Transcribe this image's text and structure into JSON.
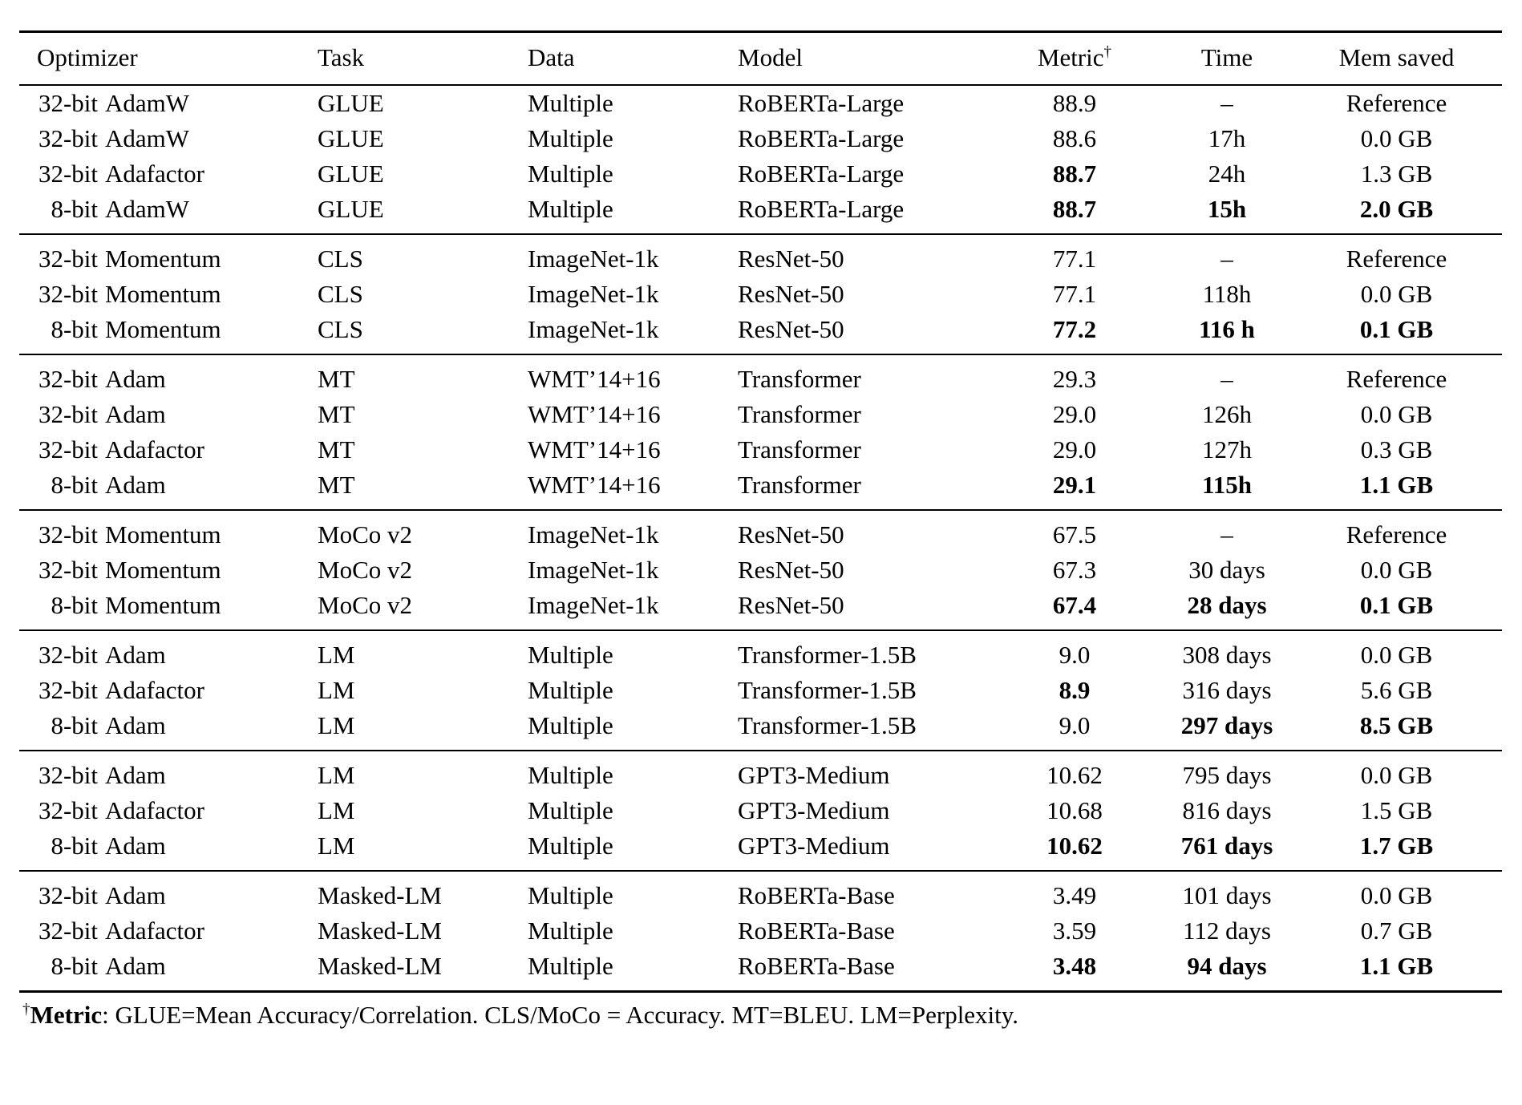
{
  "table": {
    "columns": [
      {
        "key": "optimizer",
        "label": "Optimizer"
      },
      {
        "key": "task",
        "label": "Task"
      },
      {
        "key": "data",
        "label": "Data"
      },
      {
        "key": "model",
        "label": "Model"
      },
      {
        "key": "metric",
        "label": "Metric",
        "sup": "†"
      },
      {
        "key": "time",
        "label": "Time"
      },
      {
        "key": "mem",
        "label": "Mem saved"
      }
    ],
    "groups": [
      {
        "rows": [
          {
            "optimizer": "32-bit AdamW",
            "task": "GLUE",
            "data": "Multiple",
            "model": "RoBERTa-Large",
            "metric": "88.9",
            "time": "–",
            "mem": "Reference",
            "bold": []
          },
          {
            "optimizer": "32-bit AdamW",
            "task": "GLUE",
            "data": "Multiple",
            "model": "RoBERTa-Large",
            "metric": "88.6",
            "time": "17h",
            "mem": "0.0 GB",
            "bold": []
          },
          {
            "optimizer": "32-bit Adafactor",
            "task": "GLUE",
            "data": "Multiple",
            "model": "RoBERTa-Large",
            "metric": "88.7",
            "time": "24h",
            "mem": "1.3 GB",
            "bold": [
              "metric"
            ]
          },
          {
            "optimizer": "8-bit AdamW",
            "task": "GLUE",
            "data": "Multiple",
            "model": "RoBERTa-Large",
            "metric": "88.7",
            "time": "15h",
            "mem": "2.0 GB",
            "bold": [
              "metric",
              "time",
              "mem"
            ]
          }
        ]
      },
      {
        "rows": [
          {
            "optimizer": "32-bit Momentum",
            "task": "CLS",
            "data": "ImageNet-1k",
            "model": "ResNet-50",
            "metric": "77.1",
            "time": "–",
            "mem": "Reference",
            "bold": []
          },
          {
            "optimizer": "32-bit Momentum",
            "task": "CLS",
            "data": "ImageNet-1k",
            "model": "ResNet-50",
            "metric": "77.1",
            "time": "118h",
            "mem": "0.0 GB",
            "bold": []
          },
          {
            "optimizer": "8-bit Momentum",
            "task": "CLS",
            "data": "ImageNet-1k",
            "model": "ResNet-50",
            "metric": "77.2",
            "time": "116 h",
            "mem": "0.1 GB",
            "bold": [
              "metric",
              "time",
              "mem"
            ]
          }
        ]
      },
      {
        "rows": [
          {
            "optimizer": "32-bit Adam",
            "task": "MT",
            "data": "WMT’14+16",
            "model": "Transformer",
            "metric": "29.3",
            "time": "–",
            "mem": "Reference",
            "bold": []
          },
          {
            "optimizer": "32-bit Adam",
            "task": "MT",
            "data": "WMT’14+16",
            "model": "Transformer",
            "metric": "29.0",
            "time": "126h",
            "mem": "0.0 GB",
            "bold": []
          },
          {
            "optimizer": "32-bit Adafactor",
            "task": "MT",
            "data": "WMT’14+16",
            "model": "Transformer",
            "metric": "29.0",
            "time": "127h",
            "mem": "0.3 GB",
            "bold": []
          },
          {
            "optimizer": "8-bit Adam",
            "task": "MT",
            "data": "WMT’14+16",
            "model": "Transformer",
            "metric": "29.1",
            "time": "115h",
            "mem": "1.1 GB",
            "bold": [
              "metric",
              "time",
              "mem"
            ]
          }
        ]
      },
      {
        "rows": [
          {
            "optimizer": "32-bit Momentum",
            "task": "MoCo v2",
            "data": "ImageNet-1k",
            "model": "ResNet-50",
            "metric": "67.5",
            "time": "–",
            "mem": "Reference",
            "bold": []
          },
          {
            "optimizer": "32-bit Momentum",
            "task": "MoCo v2",
            "data": "ImageNet-1k",
            "model": "ResNet-50",
            "metric": "67.3",
            "time": "30 days",
            "mem": "0.0 GB",
            "bold": []
          },
          {
            "optimizer": "8-bit Momentum",
            "task": "MoCo v2",
            "data": "ImageNet-1k",
            "model": "ResNet-50",
            "metric": "67.4",
            "time": "28 days",
            "mem": "0.1 GB",
            "bold": [
              "metric",
              "time",
              "mem"
            ]
          }
        ]
      },
      {
        "rows": [
          {
            "optimizer": "32-bit Adam",
            "task": "LM",
            "data": "Multiple",
            "model": "Transformer-1.5B",
            "metric": "9.0",
            "time": "308 days",
            "mem": "0.0 GB",
            "bold": []
          },
          {
            "optimizer": "32-bit Adafactor",
            "task": "LM",
            "data": "Multiple",
            "model": "Transformer-1.5B",
            "metric": "8.9",
            "time": "316 days",
            "mem": "5.6 GB",
            "bold": [
              "metric"
            ]
          },
          {
            "optimizer": "8-bit Adam",
            "task": "LM",
            "data": "Multiple",
            "model": "Transformer-1.5B",
            "metric": "9.0",
            "time": "297 days",
            "mem": "8.5 GB",
            "bold": [
              "time",
              "mem"
            ]
          }
        ]
      },
      {
        "rows": [
          {
            "optimizer": "32-bit Adam",
            "task": "LM",
            "data": "Multiple",
            "model": "GPT3-Medium",
            "metric": "10.62",
            "time": "795 days",
            "mem": "0.0 GB",
            "bold": []
          },
          {
            "optimizer": "32-bit Adafactor",
            "task": "LM",
            "data": "Multiple",
            "model": "GPT3-Medium",
            "metric": "10.68",
            "time": "816 days",
            "mem": "1.5 GB",
            "bold": []
          },
          {
            "optimizer": "8-bit Adam",
            "task": "LM",
            "data": "Multiple",
            "model": "GPT3-Medium",
            "metric": "10.62",
            "time": "761 days",
            "mem": "1.7 GB",
            "bold": [
              "metric",
              "time",
              "mem"
            ]
          }
        ]
      },
      {
        "rows": [
          {
            "optimizer": "32-bit Adam",
            "task": "Masked-LM",
            "data": "Multiple",
            "model": "RoBERTa-Base",
            "metric": "3.49",
            "time": "101 days",
            "mem": "0.0 GB",
            "bold": []
          },
          {
            "optimizer": "32-bit Adafactor",
            "task": "Masked-LM",
            "data": "Multiple",
            "model": "RoBERTa-Base",
            "metric": "3.59",
            "time": "112 days",
            "mem": "0.7 GB",
            "bold": []
          },
          {
            "optimizer": "8-bit Adam",
            "task": "Masked-LM",
            "data": "Multiple",
            "model": "RoBERTa-Base",
            "metric": "3.48",
            "time": "94 days",
            "mem": "1.1 GB",
            "bold": [
              "metric",
              "time",
              "mem"
            ]
          }
        ]
      }
    ]
  },
  "footnote": {
    "sup": "†",
    "bold_label": "Metric",
    "text": ": GLUE=Mean Accuracy/Correlation. CLS/MoCo = Accuracy. MT=BLEU. LM=Perplexity."
  }
}
